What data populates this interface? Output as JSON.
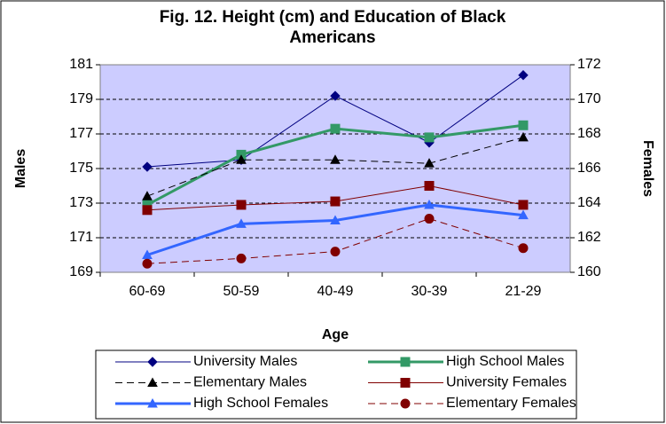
{
  "chart_data": {
    "type": "line",
    "title": "Fig. 12. Height (cm) and Education of Black Americans",
    "x_label": "Age",
    "y_label": "Males",
    "y2_label": "Females",
    "categories": [
      "60-69",
      "50-59",
      "40-49",
      "30-39",
      "21-29"
    ],
    "ylim": [
      169,
      181
    ],
    "yticks": [
      169,
      171,
      173,
      175,
      177,
      179,
      181
    ],
    "y2lim": [
      160,
      172
    ],
    "y2ticks": [
      160,
      162,
      164,
      166,
      168,
      170,
      172
    ],
    "grid": true,
    "legend": "bottom",
    "series": [
      {
        "name": "University Males",
        "color": "#000080",
        "marker": "diamond",
        "dashed": false,
        "width": 1,
        "values": [
          175.1,
          175.5,
          179.2,
          176.5,
          180.4
        ]
      },
      {
        "name": "High School Males",
        "color": "#339966",
        "marker": "square",
        "dashed": false,
        "width": 3,
        "values": [
          172.9,
          175.8,
          177.3,
          176.8,
          177.5
        ]
      },
      {
        "name": "Elementary Males",
        "color": "#000000",
        "marker": "triangle",
        "dashed": true,
        "width": 1,
        "values": [
          173.4,
          175.5,
          175.5,
          175.3,
          176.8
        ]
      },
      {
        "name": "University Females",
        "color": "#800000",
        "marker": "square",
        "dashed": false,
        "width": 1,
        "axis": "y2",
        "values": [
          163.6,
          163.9,
          164.1,
          165.0,
          163.9
        ]
      },
      {
        "name": "High School Females",
        "color": "#3366ff",
        "marker": "triangle",
        "dashed": false,
        "width": 3,
        "axis": "y2",
        "values": [
          161.0,
          162.8,
          163.0,
          163.9,
          163.3
        ]
      },
      {
        "name": "Elementary Females",
        "color": "#800000",
        "marker": "circle",
        "dashed": true,
        "width": 1,
        "axis": "y2",
        "values": [
          160.5,
          160.8,
          161.2,
          163.1,
          161.4
        ]
      }
    ]
  }
}
